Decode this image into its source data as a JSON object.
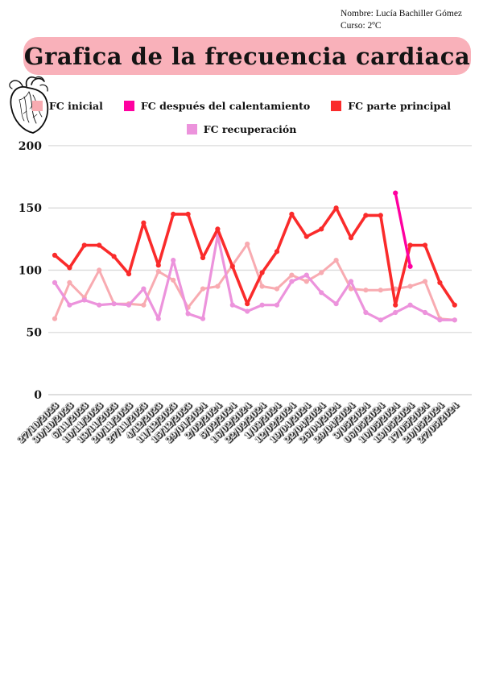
{
  "header": {
    "name_line": "Nombre: Lucía Bachiller Gómez",
    "course_line": "Curso: 2ºC"
  },
  "title": "Grafica de la frecuencia cardiaca",
  "banner_color": "#f9b1ba",
  "legend": [
    {
      "label": "FC inicial",
      "color": "#f8abb1"
    },
    {
      "label": "FC después del calentamiento",
      "color": "#ff00a0"
    },
    {
      "label": "FC parte principal",
      "color": "#fa2b2b"
    },
    {
      "label": "FC recuperación",
      "color": "#ec93dc"
    }
  ],
  "chart_data": {
    "type": "line",
    "title": "Grafica de la frecuencia cardiaca",
    "xlabel": "",
    "ylabel": "",
    "ylim": [
      0,
      200
    ],
    "yticks": [
      0,
      50,
      100,
      150,
      200
    ],
    "grid": true,
    "legend_position": "top",
    "categories": [
      "27/10/2023",
      "30/10/2023",
      "6/11/2023",
      "10/11/2023",
      "13/11/2023",
      "20/11/2023",
      "27/11/2023",
      "4/12/2023",
      "11/12/2023",
      "15/12/2023",
      "29/01/2024",
      "2/02/2024",
      "5/02/2024",
      "16/02/2024",
      "22/02/2024",
      "1/03/2024",
      "12/02/2024",
      "19/04/2024",
      "22/04/2024",
      "26/04/2024",
      "29/04/2024",
      "3/05/2024",
      "06/05/2024",
      "10/05/2024",
      "13/05/2024",
      "17/05/2024",
      "20/05/2024",
      "27/05/2024"
    ],
    "series": [
      {
        "name": "FC inicial",
        "color": "#f8abb1",
        "width": 3,
        "values": [
          61,
          90,
          78,
          100,
          73,
          73,
          72,
          99,
          92,
          70,
          85,
          87,
          104,
          121,
          87,
          85,
          96,
          91,
          98,
          108,
          85,
          84,
          84,
          85,
          87,
          91,
          61,
          60
        ]
      },
      {
        "name": "FC después del calentamiento",
        "color": "#ff00a0",
        "width": 3.4,
        "values": [
          null,
          null,
          null,
          null,
          null,
          null,
          null,
          null,
          null,
          null,
          null,
          null,
          null,
          null,
          null,
          null,
          null,
          null,
          null,
          null,
          null,
          null,
          null,
          162,
          103,
          null,
          null,
          null
        ]
      },
      {
        "name": "FC parte principal",
        "color": "#fa2b2b",
        "width": 3.6,
        "values": [
          112,
          102,
          120,
          120,
          111,
          97,
          138,
          104,
          145,
          145,
          110,
          133,
          103,
          73,
          98,
          115,
          145,
          127,
          133,
          150,
          126,
          144,
          144,
          72,
          120,
          120,
          90,
          72
        ]
      },
      {
        "name": "FC recuperación",
        "color": "#ec93dc",
        "width": 3.2,
        "values": [
          90,
          72,
          76,
          72,
          73,
          72,
          85,
          61,
          108,
          65,
          61,
          128,
          72,
          67,
          72,
          72,
          91,
          96,
          82,
          73,
          91,
          66,
          60,
          66,
          72,
          66,
          60,
          60
        ]
      }
    ],
    "draw_order": [
      0,
      3,
      2,
      1
    ]
  }
}
